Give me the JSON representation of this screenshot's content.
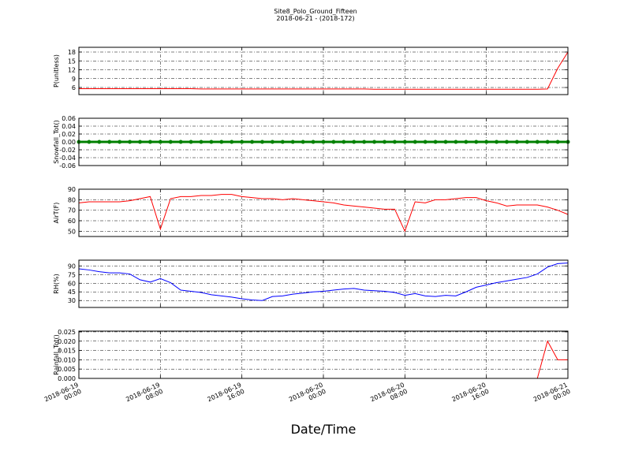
{
  "chart_data": [
    {
      "type": "line",
      "title": "Site8_Polo_Ground_Fifteen",
      "subtitle": "2018-06-21 - (2018-172)",
      "ylabel": "P(unitless)",
      "x": [
        "2018-06-19 00:00",
        "2018-06-19 01:00",
        "2018-06-19 02:00",
        "2018-06-19 03:00",
        "2018-06-19 04:00",
        "2018-06-19 05:00",
        "2018-06-19 06:00",
        "2018-06-19 07:00",
        "2018-06-19 08:00",
        "2018-06-19 09:00",
        "2018-06-19 10:00",
        "2018-06-19 11:00",
        "2018-06-19 12:00",
        "2018-06-19 13:00",
        "2018-06-19 14:00",
        "2018-06-19 15:00",
        "2018-06-19 16:00",
        "2018-06-19 17:00",
        "2018-06-19 18:00",
        "2018-06-19 19:00",
        "2018-06-19 20:00",
        "2018-06-19 21:00",
        "2018-06-19 22:00",
        "2018-06-19 23:00",
        "2018-06-20 00:00",
        "2018-06-20 01:00",
        "2018-06-20 02:00",
        "2018-06-20 03:00",
        "2018-06-20 04:00",
        "2018-06-20 05:00",
        "2018-06-20 06:00",
        "2018-06-20 07:00",
        "2018-06-20 08:00",
        "2018-06-20 09:00",
        "2018-06-20 10:00",
        "2018-06-20 11:00",
        "2018-06-20 12:00",
        "2018-06-20 13:00",
        "2018-06-20 14:00",
        "2018-06-20 15:00",
        "2018-06-20 16:00",
        "2018-06-20 17:00",
        "2018-06-20 18:00",
        "2018-06-20 19:00",
        "2018-06-20 20:00",
        "2018-06-20 21:00",
        "2018-06-20 22:00",
        "2018-06-20 23:00",
        "2018-06-21 00:00"
      ],
      "series": [
        {
          "color": "#ff0000",
          "values": [
            5.6,
            5.6,
            5.6,
            5.6,
            5.6,
            5.6,
            5.6,
            5.6,
            5.6,
            5.6,
            5.6,
            5.6,
            5.5,
            5.5,
            5.5,
            5.5,
            5.5,
            5.5,
            5.5,
            5.5,
            5.5,
            5.5,
            5.5,
            5.5,
            5.5,
            5.5,
            5.5,
            5.5,
            5.5,
            5.4,
            5.4,
            5.4,
            5.4,
            5.4,
            5.4,
            5.4,
            5.4,
            5.4,
            5.4,
            5.4,
            5.4,
            5.4,
            5.4,
            5.4,
            5.4,
            5.4,
            5.5,
            12.5,
            18
          ]
        }
      ],
      "xlim": [
        "2018-06-19 00:00",
        "2018-06-21 00:00"
      ],
      "xticks": [
        "2018-06-19 00:00",
        "2018-06-19 08:00",
        "2018-06-19 16:00",
        "2018-06-20 00:00",
        "2018-06-20 08:00",
        "2018-06-20 16:00",
        "2018-06-21 00:00"
      ],
      "ylim": [
        3.6,
        19.6
      ],
      "yticks": [
        6,
        9,
        12,
        15,
        18
      ],
      "grid": true
    },
    {
      "type": "line",
      "ylabel": "Snowfall_Tot()",
      "marker": "o",
      "x": [
        "2018-06-19 00:00",
        "2018-06-19 01:00",
        "2018-06-19 02:00",
        "2018-06-19 03:00",
        "2018-06-19 04:00",
        "2018-06-19 05:00",
        "2018-06-19 06:00",
        "2018-06-19 07:00",
        "2018-06-19 08:00",
        "2018-06-19 09:00",
        "2018-06-19 10:00",
        "2018-06-19 11:00",
        "2018-06-19 12:00",
        "2018-06-19 13:00",
        "2018-06-19 14:00",
        "2018-06-19 15:00",
        "2018-06-19 16:00",
        "2018-06-19 17:00",
        "2018-06-19 18:00",
        "2018-06-19 19:00",
        "2018-06-19 20:00",
        "2018-06-19 21:00",
        "2018-06-19 22:00",
        "2018-06-19 23:00",
        "2018-06-20 00:00",
        "2018-06-20 01:00",
        "2018-06-20 02:00",
        "2018-06-20 03:00",
        "2018-06-20 04:00",
        "2018-06-20 05:00",
        "2018-06-20 06:00",
        "2018-06-20 07:00",
        "2018-06-20 08:00",
        "2018-06-20 09:00",
        "2018-06-20 10:00",
        "2018-06-20 11:00",
        "2018-06-20 12:00",
        "2018-06-20 13:00",
        "2018-06-20 14:00",
        "2018-06-20 15:00",
        "2018-06-20 16:00",
        "2018-06-20 17:00",
        "2018-06-20 18:00",
        "2018-06-20 19:00",
        "2018-06-20 20:00",
        "2018-06-20 21:00",
        "2018-06-20 22:00",
        "2018-06-20 23:00",
        "2018-06-21 00:00"
      ],
      "series": [
        {
          "color": "#008000",
          "values": [
            0,
            0,
            0,
            0,
            0,
            0,
            0,
            0,
            0,
            0,
            0,
            0,
            0,
            0,
            0,
            0,
            0,
            0,
            0,
            0,
            0,
            0,
            0,
            0,
            0,
            0,
            0,
            0,
            0,
            0,
            0,
            0,
            0,
            0,
            0,
            0,
            0,
            0,
            0,
            0,
            0,
            0,
            0,
            0,
            0,
            0,
            0,
            0,
            0
          ]
        }
      ],
      "xlim": [
        "2018-06-19 00:00",
        "2018-06-21 00:00"
      ],
      "xticks": [
        "2018-06-19 00:00",
        "2018-06-19 08:00",
        "2018-06-19 16:00",
        "2018-06-20 00:00",
        "2018-06-20 08:00",
        "2018-06-20 16:00",
        "2018-06-21 00:00"
      ],
      "ylim": [
        -0.06,
        0.06
      ],
      "yticks": [
        {
          "value": -0.06,
          "label": "-0.06"
        },
        {
          "value": -0.04,
          "label": "-0.04"
        },
        {
          "value": -0.02,
          "label": "-0.02"
        },
        {
          "value": 0,
          "label": "0.00"
        },
        {
          "value": 0.02,
          "label": "0.02"
        },
        {
          "value": 0.04,
          "label": "0.04"
        },
        {
          "value": 0.06,
          "label": "0.06"
        }
      ],
      "grid": true
    },
    {
      "type": "line",
      "ylabel": "AirT(F)",
      "x": [
        "2018-06-19 00:00",
        "2018-06-19 01:00",
        "2018-06-19 02:00",
        "2018-06-19 03:00",
        "2018-06-19 04:00",
        "2018-06-19 05:00",
        "2018-06-19 06:00",
        "2018-06-19 07:00",
        "2018-06-19 08:00",
        "2018-06-19 09:00",
        "2018-06-19 10:00",
        "2018-06-19 11:00",
        "2018-06-19 12:00",
        "2018-06-19 13:00",
        "2018-06-19 14:00",
        "2018-06-19 15:00",
        "2018-06-19 16:00",
        "2018-06-19 17:00",
        "2018-06-19 18:00",
        "2018-06-19 19:00",
        "2018-06-19 20:00",
        "2018-06-19 21:00",
        "2018-06-19 22:00",
        "2018-06-19 23:00",
        "2018-06-20 00:00",
        "2018-06-20 01:00",
        "2018-06-20 02:00",
        "2018-06-20 03:00",
        "2018-06-20 04:00",
        "2018-06-20 05:00",
        "2018-06-20 06:00",
        "2018-06-20 07:00",
        "2018-06-20 08:00",
        "2018-06-20 09:00",
        "2018-06-20 10:00",
        "2018-06-20 11:00",
        "2018-06-20 12:00",
        "2018-06-20 13:00",
        "2018-06-20 14:00",
        "2018-06-20 15:00",
        "2018-06-20 16:00",
        "2018-06-20 17:00",
        "2018-06-20 18:00",
        "2018-06-20 19:00",
        "2018-06-20 20:00",
        "2018-06-20 21:00",
        "2018-06-20 22:00",
        "2018-06-20 23:00",
        "2018-06-21 00:00"
      ],
      "series": [
        {
          "color": "#ff0000",
          "values": [
            77,
            78,
            78,
            78,
            78,
            79,
            81,
            83,
            52,
            81,
            83,
            83,
            84,
            84,
            85,
            85,
            83,
            82,
            81,
            81,
            80,
            81,
            80,
            79,
            78,
            77,
            75,
            74,
            73,
            72,
            71,
            71,
            50,
            78,
            77,
            80,
            80,
            81,
            82,
            82,
            79,
            77,
            74,
            75,
            75,
            75,
            73,
            70,
            66
          ]
        }
      ],
      "xlim": [
        "2018-06-19 00:00",
        "2018-06-21 00:00"
      ],
      "xticks": [
        "2018-06-19 00:00",
        "2018-06-19 08:00",
        "2018-06-19 16:00",
        "2018-06-20 00:00",
        "2018-06-20 08:00",
        "2018-06-20 16:00",
        "2018-06-21 00:00"
      ],
      "ylim": [
        45,
        90
      ],
      "yticks": [
        50,
        60,
        70,
        80,
        90
      ],
      "grid": true
    },
    {
      "type": "line",
      "ylabel": "RH(%)",
      "x": [
        "2018-06-19 00:00",
        "2018-06-19 01:00",
        "2018-06-19 02:00",
        "2018-06-19 03:00",
        "2018-06-19 04:00",
        "2018-06-19 05:00",
        "2018-06-19 06:00",
        "2018-06-19 07:00",
        "2018-06-19 08:00",
        "2018-06-19 09:00",
        "2018-06-19 10:00",
        "2018-06-19 11:00",
        "2018-06-19 12:00",
        "2018-06-19 13:00",
        "2018-06-19 14:00",
        "2018-06-19 15:00",
        "2018-06-19 16:00",
        "2018-06-19 17:00",
        "2018-06-19 18:00",
        "2018-06-19 19:00",
        "2018-06-19 20:00",
        "2018-06-19 21:00",
        "2018-06-19 22:00",
        "2018-06-19 23:00",
        "2018-06-20 00:00",
        "2018-06-20 01:00",
        "2018-06-20 02:00",
        "2018-06-20 03:00",
        "2018-06-20 04:00",
        "2018-06-20 05:00",
        "2018-06-20 06:00",
        "2018-06-20 07:00",
        "2018-06-20 08:00",
        "2018-06-20 09:00",
        "2018-06-20 10:00",
        "2018-06-20 11:00",
        "2018-06-20 12:00",
        "2018-06-20 13:00",
        "2018-06-20 14:00",
        "2018-06-20 15:00",
        "2018-06-20 16:00",
        "2018-06-20 17:00",
        "2018-06-20 18:00",
        "2018-06-20 19:00",
        "2018-06-20 20:00",
        "2018-06-20 21:00",
        "2018-06-20 22:00",
        "2018-06-20 23:00",
        "2018-06-21 00:00"
      ],
      "series": [
        {
          "color": "#0000ff",
          "values": [
            85,
            83,
            80,
            78,
            78,
            76,
            66,
            62,
            68,
            61,
            48,
            46,
            44,
            40,
            38,
            36,
            33,
            31,
            30,
            37,
            38,
            41,
            43,
            45,
            46,
            48,
            50,
            51,
            48,
            47,
            46,
            44,
            39,
            42,
            38,
            37,
            39,
            38,
            45,
            53,
            57,
            61,
            64,
            67,
            70,
            76,
            88,
            94,
            95
          ]
        }
      ],
      "xlim": [
        "2018-06-19 00:00",
        "2018-06-21 00:00"
      ],
      "xticks": [
        "2018-06-19 00:00",
        "2018-06-19 08:00",
        "2018-06-19 16:00",
        "2018-06-20 00:00",
        "2018-06-20 08:00",
        "2018-06-20 16:00",
        "2018-06-21 00:00"
      ],
      "ylim": [
        18,
        100
      ],
      "yticks": [
        30,
        45,
        60,
        75,
        90
      ],
      "grid": true
    },
    {
      "type": "line",
      "ylabel": "Rainfall_Tot()",
      "xlabel": "Date/Time",
      "x": [
        "2018-06-19 00:00",
        "2018-06-19 01:00",
        "2018-06-19 02:00",
        "2018-06-19 03:00",
        "2018-06-19 04:00",
        "2018-06-19 05:00",
        "2018-06-19 06:00",
        "2018-06-19 07:00",
        "2018-06-19 08:00",
        "2018-06-19 09:00",
        "2018-06-19 10:00",
        "2018-06-19 11:00",
        "2018-06-19 12:00",
        "2018-06-19 13:00",
        "2018-06-19 14:00",
        "2018-06-19 15:00",
        "2018-06-19 16:00",
        "2018-06-19 17:00",
        "2018-06-19 18:00",
        "2018-06-19 19:00",
        "2018-06-19 20:00",
        "2018-06-19 21:00",
        "2018-06-19 22:00",
        "2018-06-19 23:00",
        "2018-06-20 00:00",
        "2018-06-20 01:00",
        "2018-06-20 02:00",
        "2018-06-20 03:00",
        "2018-06-20 04:00",
        "2018-06-20 05:00",
        "2018-06-20 06:00",
        "2018-06-20 07:00",
        "2018-06-20 08:00",
        "2018-06-20 09:00",
        "2018-06-20 10:00",
        "2018-06-20 11:00",
        "2018-06-20 12:00",
        "2018-06-20 13:00",
        "2018-06-20 14:00",
        "2018-06-20 15:00",
        "2018-06-20 16:00",
        "2018-06-20 17:00",
        "2018-06-20 18:00",
        "2018-06-20 19:00",
        "2018-06-20 20:00",
        "2018-06-20 21:00",
        "2018-06-20 22:00",
        "2018-06-20 23:00",
        "2018-06-21 00:00"
      ],
      "series": [
        {
          "color": "#ff0000",
          "values": [
            0,
            0,
            0,
            0,
            0,
            0,
            0,
            0,
            0,
            0,
            0,
            0,
            0,
            0,
            0,
            0,
            0,
            0,
            0,
            0,
            0,
            0,
            0,
            0,
            0,
            0,
            0,
            0,
            0,
            0,
            0,
            0,
            0,
            0,
            0,
            0,
            0,
            0,
            0,
            0,
            0,
            0,
            0,
            0,
            0,
            0,
            0.02,
            0.01,
            0.01
          ]
        }
      ],
      "xlim": [
        "2018-06-19 00:00",
        "2018-06-21 00:00"
      ],
      "xticks": [
        "2018-06-19 00:00",
        "2018-06-19 08:00",
        "2018-06-19 16:00",
        "2018-06-20 00:00",
        "2018-06-20 08:00",
        "2018-06-20 16:00",
        "2018-06-21 00:00"
      ],
      "ylim": [
        0,
        0.0254
      ],
      "yticks": [
        {
          "value": 0,
          "label": "0.000"
        },
        {
          "value": 0.005,
          "label": "0.005"
        },
        {
          "value": 0.01,
          "label": "0.010"
        },
        {
          "value": 0.015,
          "label": "0.015"
        },
        {
          "value": 0.02,
          "label": "0.020"
        },
        {
          "value": 0.025,
          "label": "0.025"
        }
      ],
      "grid": true
    }
  ]
}
